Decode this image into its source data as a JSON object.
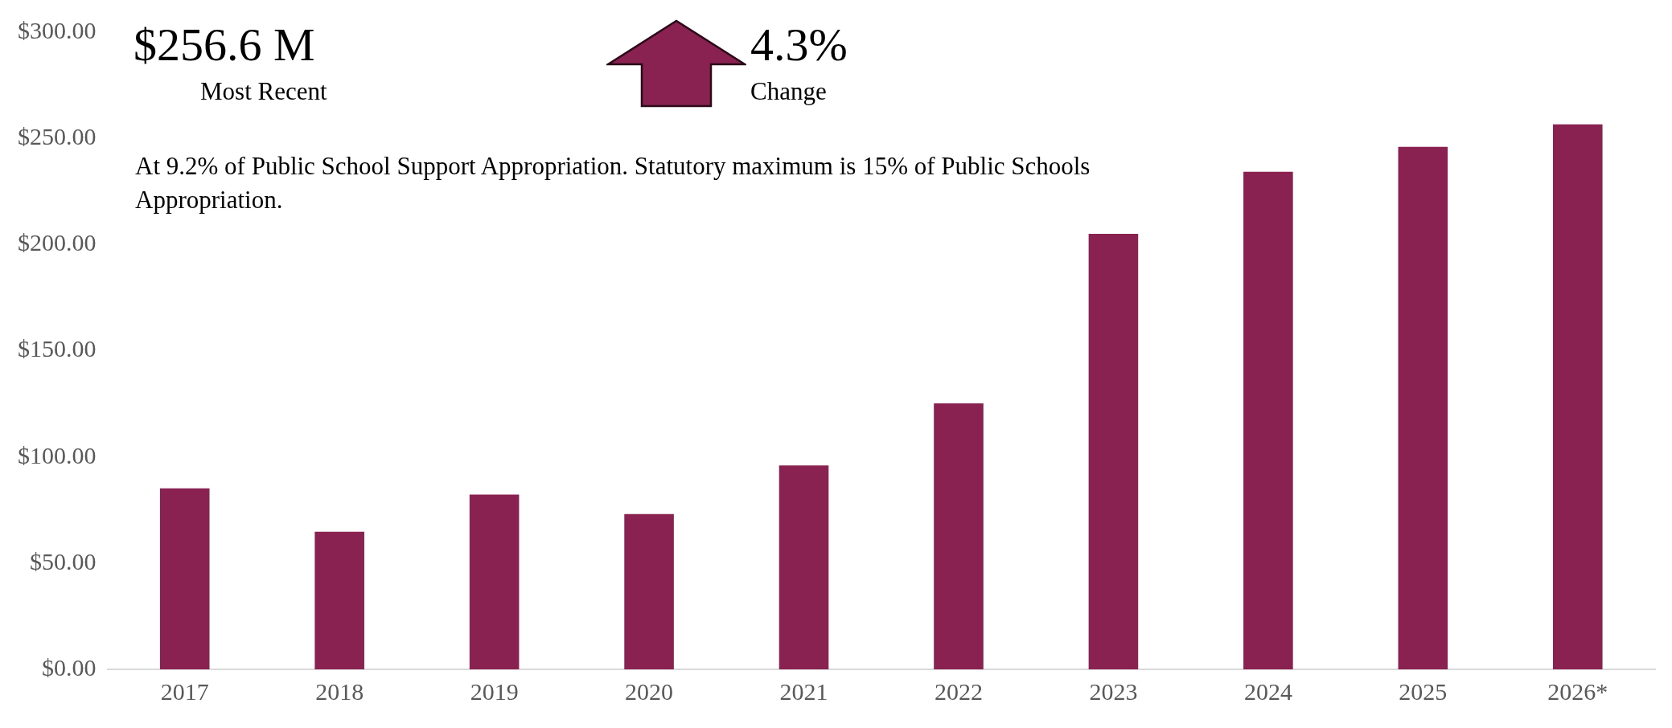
{
  "chart_data": {
    "type": "bar",
    "categories": [
      "2017",
      "2018",
      "2019",
      "2020",
      "2021",
      "2022",
      "2023",
      "2024",
      "2025",
      "2026*"
    ],
    "values": [
      85.2,
      64.8,
      82.3,
      73.1,
      96.0,
      125.2,
      205.0,
      234.3,
      246.0,
      256.6
    ],
    "color": "#8a2251",
    "ylim": [
      0,
      300
    ],
    "yticks": [
      {
        "value": 0,
        "label": "$0.00"
      },
      {
        "value": 50,
        "label": "$50.00"
      },
      {
        "value": 100,
        "label": "$100.00"
      },
      {
        "value": 150,
        "label": "$150.00"
      },
      {
        "value": 200,
        "label": "$200.00"
      },
      {
        "value": 250,
        "label": "$250.00"
      },
      {
        "value": 300,
        "label": "$300.00"
      }
    ],
    "grid": false,
    "legend": false,
    "annotations": [
      "$256.6 M",
      "Most Recent",
      "4.3%",
      "Change",
      "At 9.2% of Public School Support Appropriation. Statutory maximum is 15% of Public Schools Appropriation."
    ]
  }
}
